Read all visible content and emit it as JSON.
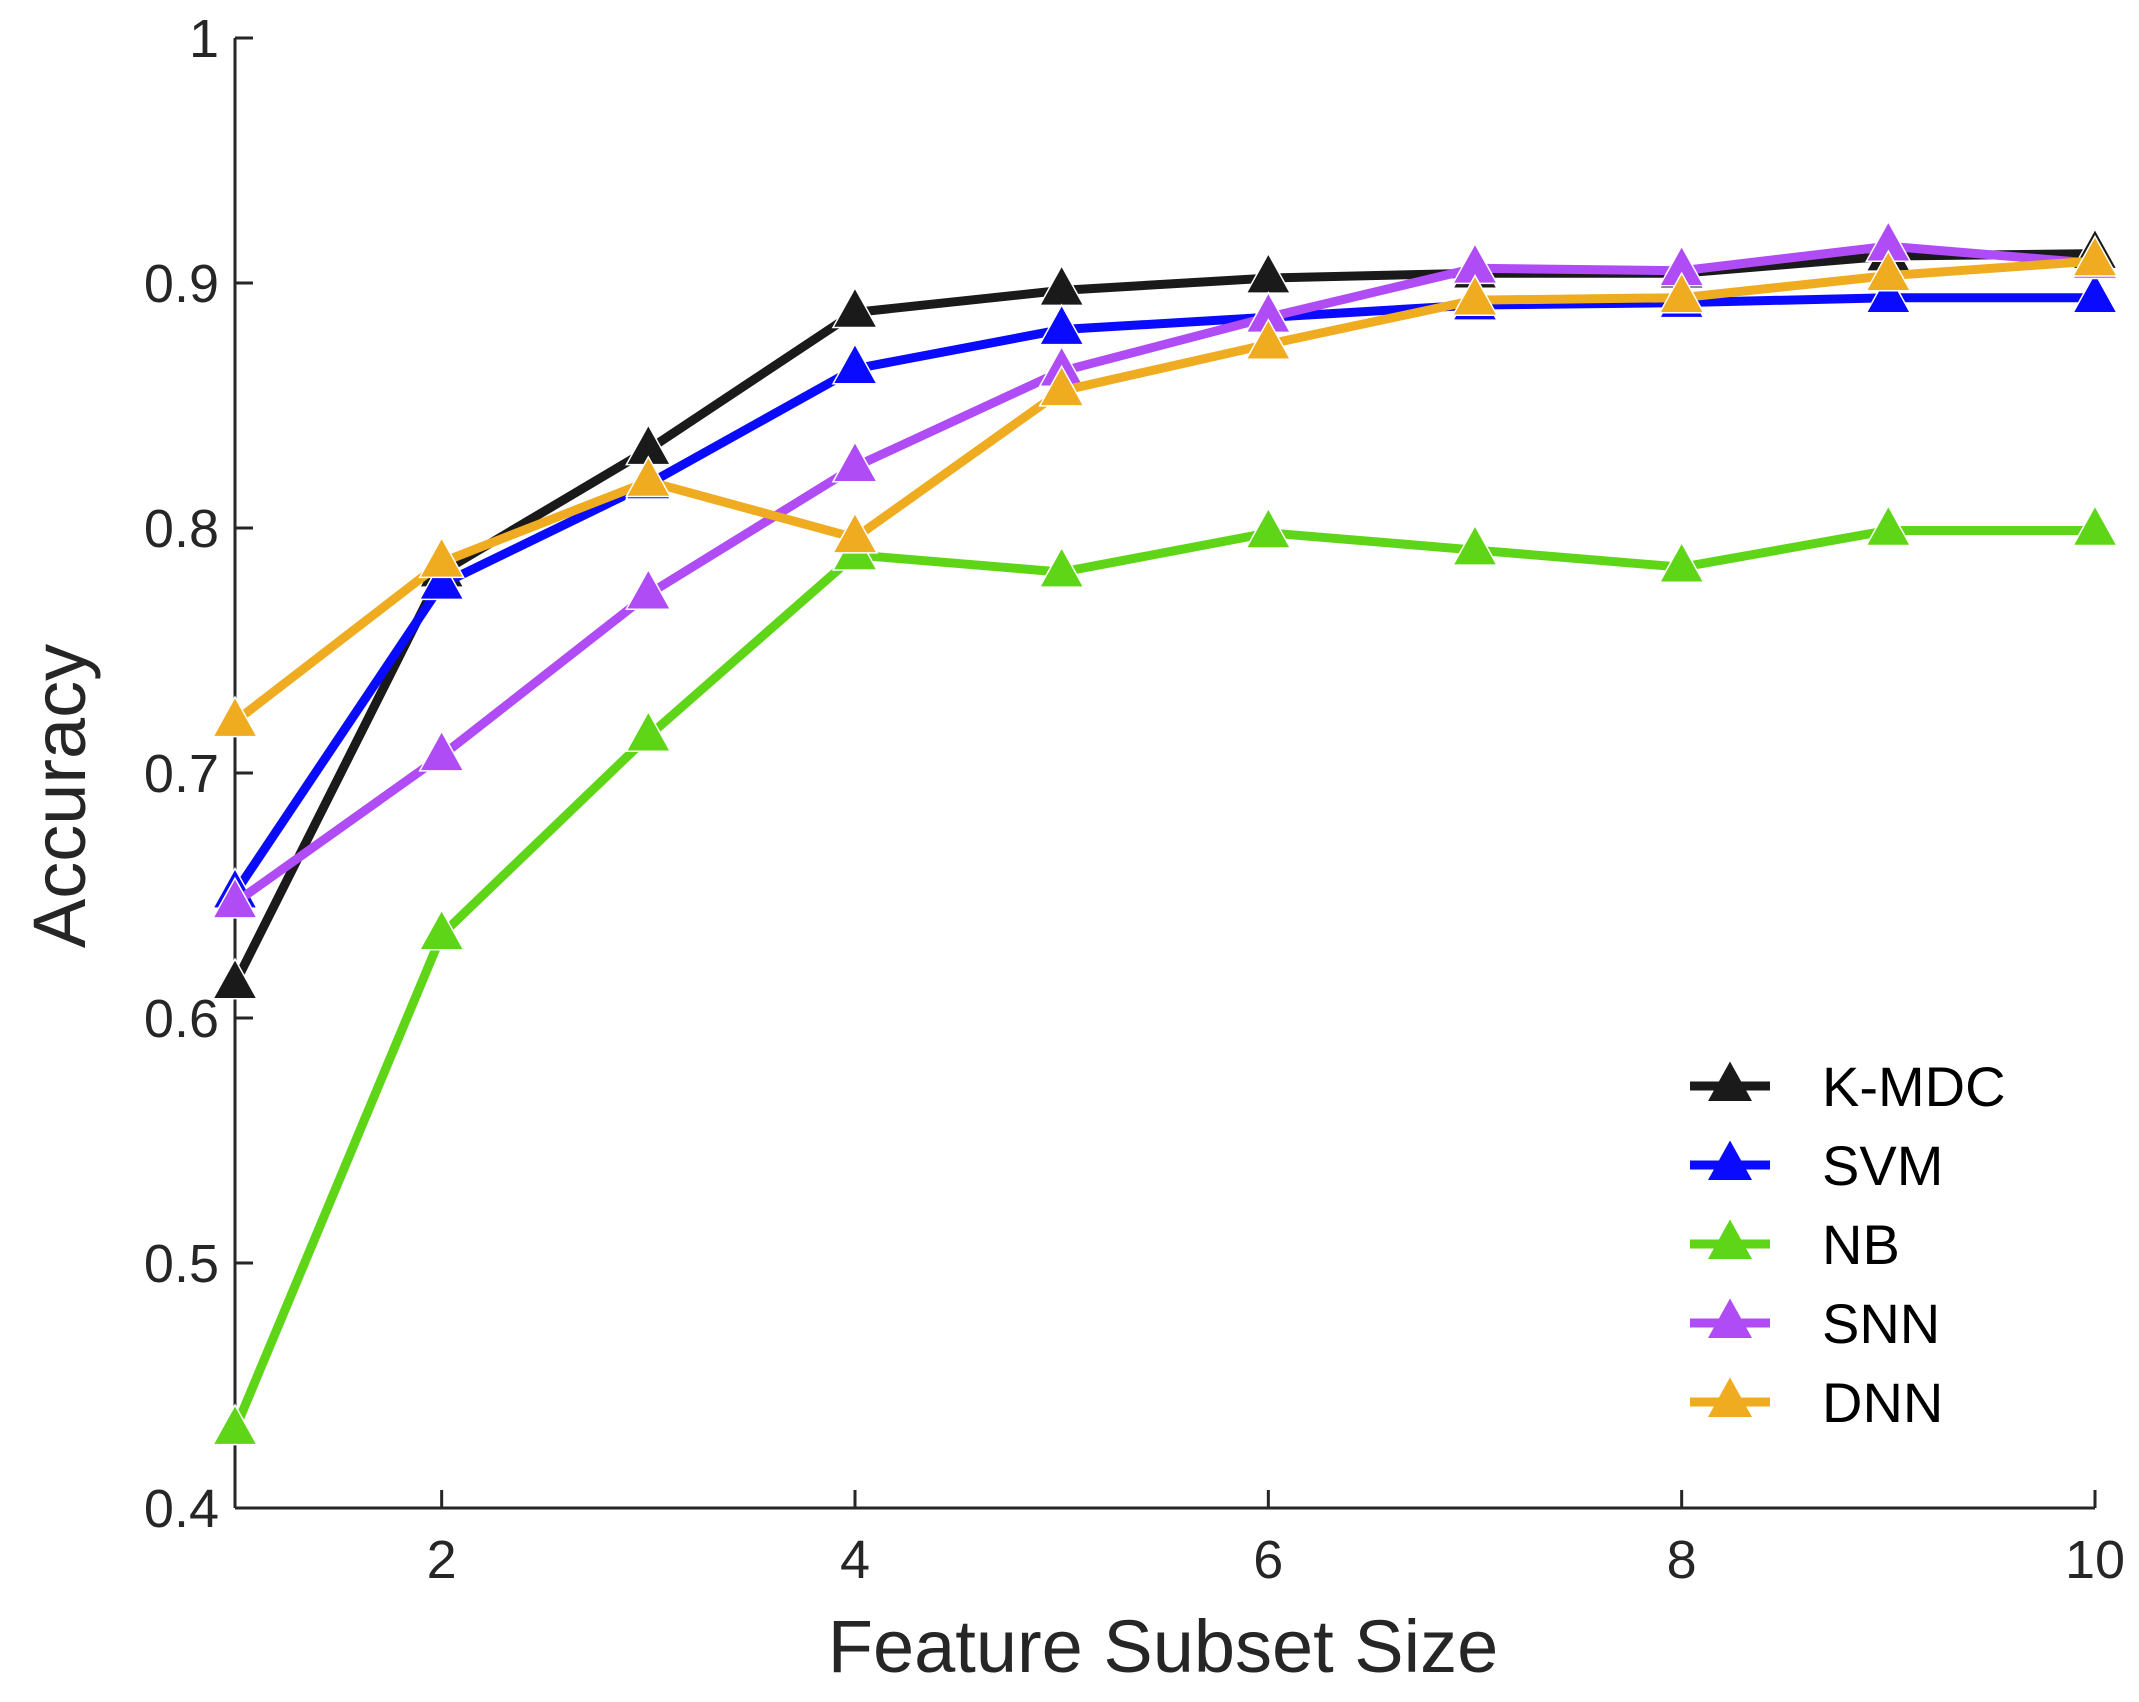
{
  "chart_data": {
    "type": "line",
    "xlabel": "Feature Subset Size",
    "ylabel": "Accuracy",
    "xlim": [
      1,
      10
    ],
    "ylim": [
      0.4,
      1
    ],
    "x_ticks": [
      2,
      4,
      6,
      8,
      10
    ],
    "y_ticks": [
      0.4,
      0.5,
      0.6,
      0.7,
      0.8,
      0.9,
      1
    ],
    "y_tick_labels": [
      "0.4",
      "0.5",
      "0.6",
      "0.7",
      "0.8",
      "0.9",
      "1"
    ],
    "x_tick_labels": [
      "2",
      "4",
      "6",
      "8",
      "10"
    ],
    "grid": false,
    "legend_position": "bottom-right",
    "marker": "triangle",
    "x": [
      1,
      2,
      3,
      4,
      5,
      6,
      7,
      8,
      9,
      10
    ],
    "series": [
      {
        "name": "K-MDC",
        "color": "#1a1a1a",
        "values": [
          0.614,
          0.782,
          0.832,
          0.888,
          0.897,
          0.902,
          0.904,
          0.904,
          0.911,
          0.912
        ]
      },
      {
        "name": "SVM",
        "color": "#0a0aff",
        "values": [
          0.651,
          0.777,
          0.818,
          0.865,
          0.881,
          0.886,
          0.891,
          0.892,
          0.894,
          0.894
        ]
      },
      {
        "name": "NB",
        "color": "#5ed617",
        "values": [
          0.432,
          0.634,
          0.715,
          0.789,
          0.782,
          0.798,
          0.791,
          0.784,
          0.799,
          0.799
        ]
      },
      {
        "name": "SNN",
        "color": "#b04cf5",
        "values": [
          0.647,
          0.707,
          0.773,
          0.825,
          0.864,
          0.886,
          0.906,
          0.905,
          0.915,
          0.908
        ]
      },
      {
        "name": "DNN",
        "color": "#f0ac21",
        "values": [
          0.721,
          0.786,
          0.819,
          0.796,
          0.856,
          0.875,
          0.893,
          0.894,
          0.903,
          0.909
        ]
      }
    ]
  }
}
